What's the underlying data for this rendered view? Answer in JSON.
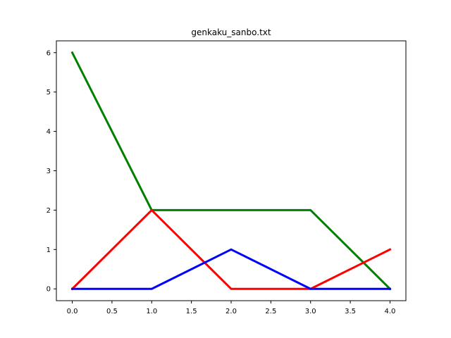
{
  "chart_data": {
    "type": "line",
    "title": "genkaku_sanbo.txt",
    "xlabel": "",
    "ylabel": "",
    "x": [
      0,
      1,
      2,
      3,
      4
    ],
    "xlim": [
      -0.2,
      4.2
    ],
    "ylim": [
      -0.3,
      6.3
    ],
    "xticks": [
      0.0,
      0.5,
      1.0,
      1.5,
      2.0,
      2.5,
      3.0,
      3.5,
      4.0
    ],
    "xtick_labels": [
      "0.0",
      "0.5",
      "1.0",
      "1.5",
      "2.0",
      "2.5",
      "3.0",
      "3.5",
      "4.0"
    ],
    "yticks": [
      0,
      1,
      2,
      3,
      4,
      5,
      6
    ],
    "ytick_labels": [
      "0",
      "1",
      "2",
      "3",
      "4",
      "5",
      "6"
    ],
    "grid": false,
    "series": [
      {
        "values": [
          6,
          2,
          2,
          2,
          0
        ],
        "color": "#008000"
      },
      {
        "values": [
          0,
          2,
          0,
          0,
          1
        ],
        "color": "#ff0000"
      },
      {
        "values": [
          0,
          0,
          1,
          0,
          0
        ],
        "color": "#0000ff"
      }
    ]
  }
}
